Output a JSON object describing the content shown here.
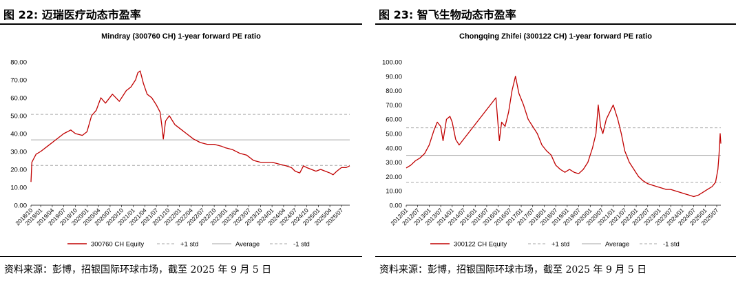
{
  "figures": [
    {
      "heading": "图 22: 迈瑞医疗动态市盈率",
      "source": "资料来源：彭博，招银国际环球市场，截至 2025 年 9 月 5 日",
      "chart_data": {
        "type": "line",
        "title": "Mindray (300760 CH) 1-year forward PE ratio",
        "xlabel": "",
        "ylabel": "",
        "ylim": [
          0,
          80
        ],
        "yticks": [
          "0.00",
          "10.00",
          "20.00",
          "30.00",
          "40.00",
          "50.00",
          "60.00",
          "70.00",
          "80.00"
        ],
        "xlim": [
          2018.79,
          2025.68
        ],
        "xticks": [
          {
            "label": "2018/10",
            "t": 2018.79
          },
          {
            "label": "2019/01",
            "t": 2019.0
          },
          {
            "label": "2019/04",
            "t": 2019.25
          },
          {
            "label": "2019/07",
            "t": 2019.5
          },
          {
            "label": "2019/10",
            "t": 2019.75
          },
          {
            "label": "2020/01",
            "t": 2020.0
          },
          {
            "label": "2020/04",
            "t": 2020.25
          },
          {
            "label": "2020/07",
            "t": 2020.5
          },
          {
            "label": "2020/10",
            "t": 2020.75
          },
          {
            "label": "2021/01",
            "t": 2021.0
          },
          {
            "label": "2021/04",
            "t": 2021.25
          },
          {
            "label": "2021/07",
            "t": 2021.5
          },
          {
            "label": "2021/10",
            "t": 2021.75
          },
          {
            "label": "2022/01",
            "t": 2022.0
          },
          {
            "label": "2022/04",
            "t": 2022.25
          },
          {
            "label": "2022/07",
            "t": 2022.5
          },
          {
            "label": "2022/10",
            "t": 2022.75
          },
          {
            "label": "2023/01",
            "t": 2023.0
          },
          {
            "label": "2023/04",
            "t": 2023.25
          },
          {
            "label": "2023/07",
            "t": 2023.5
          },
          {
            "label": "2023/10",
            "t": 2023.75
          },
          {
            "label": "2024/01",
            "t": 2024.0
          },
          {
            "label": "2024/04",
            "t": 2024.25
          },
          {
            "label": "2024/07",
            "t": 2024.5
          },
          {
            "label": "2024/10",
            "t": 2024.75
          },
          {
            "label": "2025/01",
            "t": 2025.0
          },
          {
            "label": "2025/04",
            "t": 2025.25
          },
          {
            "label": "2025/07",
            "t": 2025.5
          }
        ],
        "series": [
          {
            "name": "300760 CH Equity",
            "style": "line",
            "color": "#c00000",
            "points": [
              [
                2018.79,
                13
              ],
              [
                2018.81,
                24
              ],
              [
                2018.9,
                28.5
              ],
              [
                2019.0,
                30
              ],
              [
                2019.15,
                33
              ],
              [
                2019.3,
                36
              ],
              [
                2019.5,
                40
              ],
              [
                2019.65,
                42
              ],
              [
                2019.75,
                40
              ],
              [
                2019.9,
                39
              ],
              [
                2020.0,
                41
              ],
              [
                2020.1,
                50
              ],
              [
                2020.2,
                53
              ],
              [
                2020.3,
                60
              ],
              [
                2020.4,
                57
              ],
              [
                2020.55,
                62
              ],
              [
                2020.7,
                58
              ],
              [
                2020.85,
                64
              ],
              [
                2020.95,
                66
              ],
              [
                2021.05,
                70
              ],
              [
                2021.1,
                74
              ],
              [
                2021.15,
                75
              ],
              [
                2021.22,
                68
              ],
              [
                2021.3,
                62
              ],
              [
                2021.4,
                60
              ],
              [
                2021.5,
                56
              ],
              [
                2021.58,
                52
              ],
              [
                2021.62,
                44
              ],
              [
                2021.65,
                37
              ],
              [
                2021.7,
                47
              ],
              [
                2021.78,
                50
              ],
              [
                2021.9,
                45
              ],
              [
                2022.0,
                43
              ],
              [
                2022.15,
                40
              ],
              [
                2022.3,
                37
              ],
              [
                2022.45,
                35
              ],
              [
                2022.6,
                34
              ],
              [
                2022.75,
                34
              ],
              [
                2022.9,
                33
              ],
              [
                2023.0,
                32
              ],
              [
                2023.15,
                31
              ],
              [
                2023.3,
                29
              ],
              [
                2023.45,
                28
              ],
              [
                2023.6,
                25
              ],
              [
                2023.75,
                24
              ],
              [
                2023.9,
                24
              ],
              [
                2024.0,
                24
              ],
              [
                2024.15,
                23
              ],
              [
                2024.3,
                22
              ],
              [
                2024.42,
                21
              ],
              [
                2024.5,
                19
              ],
              [
                2024.6,
                18
              ],
              [
                2024.68,
                22
              ],
              [
                2024.75,
                21
              ],
              [
                2024.85,
                20
              ],
              [
                2024.95,
                19
              ],
              [
                2025.05,
                20
              ],
              [
                2025.15,
                19
              ],
              [
                2025.25,
                18
              ],
              [
                2025.32,
                17
              ],
              [
                2025.4,
                19
              ],
              [
                2025.5,
                21
              ],
              [
                2025.6,
                21
              ],
              [
                2025.68,
                22
              ]
            ]
          },
          {
            "name": "+1 std",
            "style": "dash",
            "color": "#a6a6a6",
            "value": 50.7
          },
          {
            "name": "Average",
            "style": "solid",
            "color": "#a6a6a6",
            "value": 36.5
          },
          {
            "name": "-1 std",
            "style": "dash",
            "color": "#a6a6a6",
            "value": 22.2
          }
        ]
      }
    },
    {
      "heading": "图 23: 智飞生物动态市盈率",
      "source": "资料来源：彭博，招银国际环球市场，截至 2025 年 9 月 5 日",
      "chart_data": {
        "type": "line",
        "title": "Chongqing Zhifei (300122 CH) 1-year forward PE ratio",
        "xlabel": "",
        "ylabel": "",
        "ylim": [
          0,
          100
        ],
        "yticks": [
          "0.00",
          "10.00",
          "20.00",
          "30.00",
          "40.00",
          "50.00",
          "60.00",
          "70.00",
          "80.00",
          "90.00",
          "100.00"
        ],
        "xlim": [
          2012.0,
          2025.68
        ],
        "xticks": [
          {
            "label": "2012/01",
            "t": 2012.0
          },
          {
            "label": "2012/07",
            "t": 2012.5
          },
          {
            "label": "2013/01",
            "t": 2013.0
          },
          {
            "label": "2013/07",
            "t": 2013.5
          },
          {
            "label": "2014/01",
            "t": 2014.0
          },
          {
            "label": "2014/07",
            "t": 2014.5
          },
          {
            "label": "2015/01",
            "t": 2015.0
          },
          {
            "label": "2015/07",
            "t": 2015.5
          },
          {
            "label": "2016/01",
            "t": 2016.0
          },
          {
            "label": "2016/07",
            "t": 2016.5
          },
          {
            "label": "2017/01",
            "t": 2017.0
          },
          {
            "label": "2017/07",
            "t": 2017.5
          },
          {
            "label": "2018/01",
            "t": 2018.0
          },
          {
            "label": "2018/07",
            "t": 2018.5
          },
          {
            "label": "2019/01",
            "t": 2019.0
          },
          {
            "label": "2019/07",
            "t": 2019.5
          },
          {
            "label": "2020/01",
            "t": 2020.0
          },
          {
            "label": "2020/07",
            "t": 2020.5
          },
          {
            "label": "2021/01",
            "t": 2021.0
          },
          {
            "label": "2021/07",
            "t": 2021.5
          },
          {
            "label": "2022/01",
            "t": 2022.0
          },
          {
            "label": "2022/07",
            "t": 2022.5
          },
          {
            "label": "2023/01",
            "t": 2023.0
          },
          {
            "label": "2023/07",
            "t": 2023.5
          },
          {
            "label": "2024/01",
            "t": 2024.0
          },
          {
            "label": "2024/07",
            "t": 2024.5
          },
          {
            "label": "2025/01",
            "t": 2025.0
          },
          {
            "label": "2025/07",
            "t": 2025.5
          }
        ],
        "series": [
          {
            "name": "300122 CH Equity",
            "style": "line",
            "color": "#c00000",
            "points": [
              [
                2012.0,
                26
              ],
              [
                2012.2,
                28
              ],
              [
                2012.4,
                31
              ],
              [
                2012.6,
                33
              ],
              [
                2012.8,
                36
              ],
              [
                2013.0,
                42
              ],
              [
                2013.2,
                52
              ],
              [
                2013.35,
                58
              ],
              [
                2013.5,
                55
              ],
              [
                2013.6,
                45
              ],
              [
                2013.75,
                60
              ],
              [
                2013.9,
                62
              ],
              [
                2014.0,
                58
              ],
              [
                2014.15,
                46
              ],
              [
                2014.3,
                42
              ],
              [
                2015.9,
                75
              ],
              [
                2016.05,
                45
              ],
              [
                2016.15,
                58
              ],
              [
                2016.3,
                55
              ],
              [
                2016.45,
                65
              ],
              [
                2016.6,
                80
              ],
              [
                2016.75,
                90
              ],
              [
                2016.9,
                78
              ],
              [
                2017.1,
                70
              ],
              [
                2017.3,
                60
              ],
              [
                2017.5,
                55
              ],
              [
                2017.7,
                50
              ],
              [
                2017.9,
                42
              ],
              [
                2018.1,
                38
              ],
              [
                2018.3,
                35
              ],
              [
                2018.5,
                28
              ],
              [
                2018.7,
                25
              ],
              [
                2018.9,
                23
              ],
              [
                2019.1,
                25
              ],
              [
                2019.3,
                23
              ],
              [
                2019.5,
                22
              ],
              [
                2019.7,
                25
              ],
              [
                2019.9,
                30
              ],
              [
                2020.1,
                40
              ],
              [
                2020.25,
                50
              ],
              [
                2020.35,
                70
              ],
              [
                2020.45,
                55
              ],
              [
                2020.55,
                50
              ],
              [
                2020.7,
                60
              ],
              [
                2020.85,
                65
              ],
              [
                2021.0,
                70
              ],
              [
                2021.2,
                60
              ],
              [
                2021.35,
                50
              ],
              [
                2021.5,
                38
              ],
              [
                2021.7,
                30
              ],
              [
                2021.9,
                25
              ],
              [
                2022.1,
                20
              ],
              [
                2022.3,
                17
              ],
              [
                2022.5,
                15
              ],
              [
                2022.7,
                14
              ],
              [
                2022.9,
                13
              ],
              [
                2023.1,
                12
              ],
              [
                2023.3,
                11
              ],
              [
                2023.5,
                11
              ],
              [
                2023.7,
                10
              ],
              [
                2023.9,
                9
              ],
              [
                2024.1,
                8
              ],
              [
                2024.3,
                7
              ],
              [
                2024.5,
                6
              ],
              [
                2024.7,
                7
              ],
              [
                2024.9,
                9
              ],
              [
                2025.1,
                11
              ],
              [
                2025.3,
                13
              ],
              [
                2025.45,
                16
              ],
              [
                2025.55,
                25
              ],
              [
                2025.6,
                35
              ],
              [
                2025.65,
                50
              ],
              [
                2025.68,
                43
              ]
            ]
          },
          {
            "name": "+1 std",
            "style": "dash",
            "color": "#a6a6a6",
            "value": 54.0
          },
          {
            "name": "Average",
            "style": "solid",
            "color": "#a6a6a6",
            "value": 34.8
          },
          {
            "name": "-1 std",
            "style": "dash",
            "color": "#a6a6a6",
            "value": 16.0
          }
        ]
      }
    }
  ]
}
